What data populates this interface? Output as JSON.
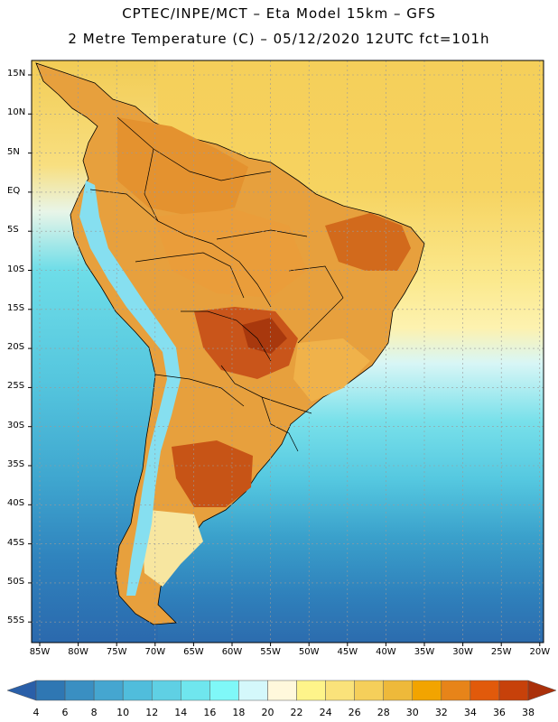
{
  "header": {
    "line1": "CPTEC/INPE/MCT –  Eta Model 15km – GFS",
    "line2": "2 Metre Temperature (C) – 05/12/2020 12UTC fct=101h"
  },
  "map": {
    "lat_labels": [
      "15N",
      "10N",
      "5N",
      "EQ",
      "5S",
      "10S",
      "15S",
      "20S",
      "25S",
      "30S",
      "35S",
      "40S",
      "45S",
      "50S",
      "55S"
    ],
    "lon_labels": [
      "85W",
      "80W",
      "75W",
      "70W",
      "65W",
      "60W",
      "55W",
      "50W",
      "45W",
      "40W",
      "35W",
      "30W",
      "25W",
      "20W"
    ],
    "colors": {
      "ocean_north": "#f5cf5a",
      "ocean_mid": "#fcef9a",
      "ocean_cool": "#62d6e6",
      "ocean_cold": "#3aa6cc",
      "ocean_deep": "#2f77b3",
      "land_hot": "#e08a2a",
      "land_warm": "#e9a340",
      "land_veryhot": "#b8420c",
      "andes": "#7fd9ec"
    }
  },
  "colorbar": {
    "labels": [
      "4",
      "6",
      "8",
      "10",
      "12",
      "14",
      "16",
      "18",
      "20",
      "22",
      "24",
      "26",
      "28",
      "30",
      "32",
      "34",
      "36",
      "38"
    ],
    "colors": [
      "#2a5fa8",
      "#2f77b3",
      "#3a8fc2",
      "#45a6d0",
      "#50bddc",
      "#5fd0e4",
      "#6fe6ee",
      "#7ff8f8",
      "#d4f8fb",
      "#fff8dc",
      "#fef48a",
      "#fae27a",
      "#f5cf5a",
      "#eeb93a",
      "#f2a400",
      "#e78419",
      "#e15a0b",
      "#c7410a",
      "#aa300a"
    ]
  }
}
